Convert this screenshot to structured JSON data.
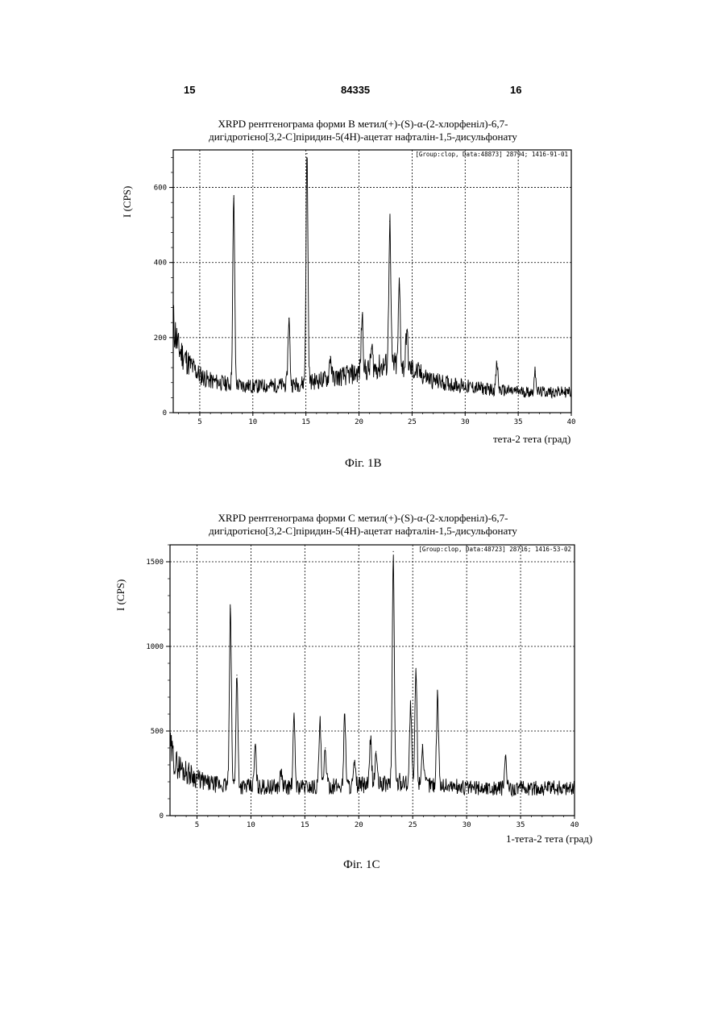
{
  "page": {
    "left_num": "15",
    "patent_num": "84335",
    "right_num": "16"
  },
  "chart_data": [
    {
      "type": "line",
      "title": "XRPD рентгенограма форми В метил(+)-(S)-α-(2-хлорфеніл)-6,7-",
      "subtitle": "дигідротієно[3,2-C]піридин-5(4H)-ацетат нафталін-1,5-дисульфонату",
      "xlabel": "тета-2 тета (град)",
      "ylabel": "I (CPS)",
      "caption": "Фіг. 1В",
      "annotation": "[Group:clop, Data:48873] 28794; 1416-91-01",
      "xlim": [
        2.5,
        40
      ],
      "ylim": [
        0,
        700
      ],
      "x_ticks": [
        "5",
        "10",
        "15",
        "20",
        "25",
        "30",
        "35",
        "40"
      ],
      "x_tick_values": [
        5,
        10,
        15,
        20,
        25,
        30,
        35,
        40
      ],
      "y_ticks": [
        "0",
        "200",
        "400",
        "600"
      ],
      "y_tick_values": [
        0,
        200,
        400,
        600
      ],
      "grid": true,
      "color": "#000000",
      "baseline": [
        [
          2.5,
          240
        ],
        [
          3,
          170
        ],
        [
          4,
          130
        ],
        [
          5,
          100
        ],
        [
          6,
          85
        ],
        [
          8,
          75
        ],
        [
          10,
          70
        ],
        [
          14,
          75
        ],
        [
          16,
          85
        ],
        [
          19,
          100
        ],
        [
          21,
          115
        ],
        [
          23,
          130
        ],
        [
          25,
          115
        ],
        [
          27,
          85
        ],
        [
          30,
          70
        ],
        [
          33,
          60
        ],
        [
          36,
          55
        ],
        [
          40,
          55
        ]
      ],
      "peaks": [
        {
          "x": 8.2,
          "y": 570
        },
        {
          "x": 13.4,
          "y": 250
        },
        {
          "x": 15.1,
          "y": 690
        },
        {
          "x": 20.3,
          "y": 260
        },
        {
          "x": 22.9,
          "y": 510
        },
        {
          "x": 23.8,
          "y": 340
        },
        {
          "x": 24.5,
          "y": 220
        },
        {
          "x": 21.2,
          "y": 170
        },
        {
          "x": 17.3,
          "y": 150
        },
        {
          "x": 33.0,
          "y": 130
        },
        {
          "x": 36.6,
          "y": 110
        }
      ]
    },
    {
      "type": "line",
      "title": "XRPD рентгенограма форми С метил(+)-(S)-α-(2-хлорфеніл)-6,7-",
      "subtitle": "дигідротієно[3,2-C]піридин-5(4H)-ацетат нафталін-1,5-дисульфонату",
      "xlabel": "1-тета-2 тета (град)",
      "ylabel": "I (CPS)",
      "caption": "Фіг. 1С",
      "annotation": "[Group:clop, Data:48723] 28716; 1416-53-02",
      "xlim": [
        2.5,
        40
      ],
      "ylim": [
        0,
        1600
      ],
      "x_ticks": [
        "5",
        "10",
        "15",
        "20",
        "25",
        "30",
        "35",
        "40"
      ],
      "x_tick_values": [
        5,
        10,
        15,
        20,
        25,
        30,
        35,
        40
      ],
      "y_ticks": [
        "0",
        "500",
        "1000",
        "1500"
      ],
      "y_tick_values": [
        0,
        500,
        1000,
        1500
      ],
      "grid": true,
      "color": "#000000",
      "baseline": [
        [
          2.5,
          400
        ],
        [
          3,
          310
        ],
        [
          4,
          260
        ],
        [
          5,
          220
        ],
        [
          6,
          190
        ],
        [
          7.5,
          180
        ],
        [
          10,
          170
        ],
        [
          14,
          170
        ],
        [
          18,
          175
        ],
        [
          22,
          185
        ],
        [
          24,
          200
        ],
        [
          27,
          185
        ],
        [
          30,
          165
        ],
        [
          35,
          160
        ],
        [
          40,
          165
        ]
      ],
      "peaks": [
        {
          "x": 8.1,
          "y": 1220
        },
        {
          "x": 8.7,
          "y": 830
        },
        {
          "x": 10.4,
          "y": 410
        },
        {
          "x": 14.0,
          "y": 570
        },
        {
          "x": 16.4,
          "y": 550
        },
        {
          "x": 16.9,
          "y": 400
        },
        {
          "x": 18.7,
          "y": 600
        },
        {
          "x": 21.1,
          "y": 450
        },
        {
          "x": 21.6,
          "y": 380
        },
        {
          "x": 23.2,
          "y": 1560
        },
        {
          "x": 24.8,
          "y": 650
        },
        {
          "x": 25.3,
          "y": 870
        },
        {
          "x": 25.9,
          "y": 420
        },
        {
          "x": 27.3,
          "y": 730
        },
        {
          "x": 33.6,
          "y": 350
        },
        {
          "x": 12.8,
          "y": 260
        },
        {
          "x": 19.6,
          "y": 300
        }
      ]
    }
  ]
}
